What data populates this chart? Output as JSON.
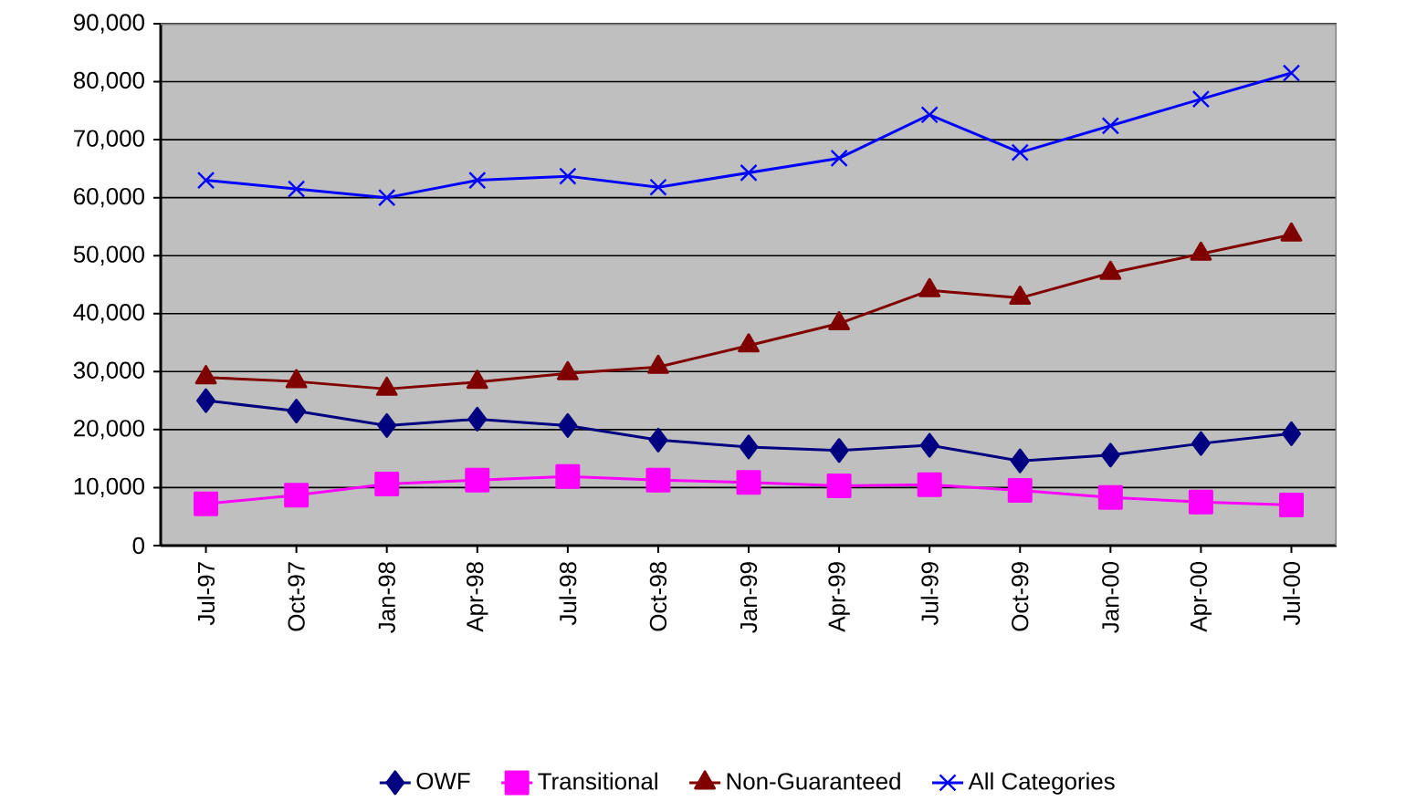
{
  "chart_data": {
    "type": "line",
    "categories": [
      "Jul-97",
      "Oct-97",
      "Jan-98",
      "Apr-98",
      "Jul-98",
      "Oct-98",
      "Jan-99",
      "Apr-99",
      "Jul-99",
      "Oct-99",
      "Jan-00",
      "Apr-00",
      "Jul-00"
    ],
    "series": [
      {
        "name": "OWF",
        "color": "#000080",
        "marker": "diamond",
        "values": [
          25000,
          23200,
          20700,
          21800,
          20700,
          18200,
          17000,
          16400,
          17300,
          14600,
          15600,
          17600,
          19300
        ]
      },
      {
        "name": "Transitional",
        "color": "#ff00ff",
        "marker": "square",
        "values": [
          7200,
          8700,
          10600,
          11300,
          11900,
          11300,
          10900,
          10300,
          10500,
          9500,
          8300,
          7500,
          7000
        ]
      },
      {
        "name": "Non-Guaranteed",
        "color": "#800000",
        "marker": "triangle",
        "values": [
          29000,
          28300,
          27000,
          28200,
          29700,
          30800,
          34500,
          38300,
          44000,
          42700,
          47000,
          50300,
          53600
        ]
      },
      {
        "name": "All Categories",
        "color": "#0000ff",
        "marker": "cross",
        "values": [
          63000,
          61500,
          60000,
          63000,
          63700,
          61800,
          64300,
          66800,
          74300,
          67800,
          72400,
          77000,
          81500
        ]
      }
    ],
    "ylim": [
      0,
      90000
    ],
    "yticks": [
      {
        "value": 0,
        "label": "0"
      },
      {
        "value": 10000,
        "label": "10,000"
      },
      {
        "value": 20000,
        "label": "20,000"
      },
      {
        "value": 30000,
        "label": "30,000"
      },
      {
        "value": 40000,
        "label": "40,000"
      },
      {
        "value": 50000,
        "label": "50,000"
      },
      {
        "value": 60000,
        "label": "60,000"
      },
      {
        "value": 70000,
        "label": "70,000"
      },
      {
        "value": 80000,
        "label": "80,000"
      },
      {
        "value": 90000,
        "label": "90,000"
      }
    ],
    "grid": "y",
    "legend": "bottom",
    "line_style": "solid"
  }
}
